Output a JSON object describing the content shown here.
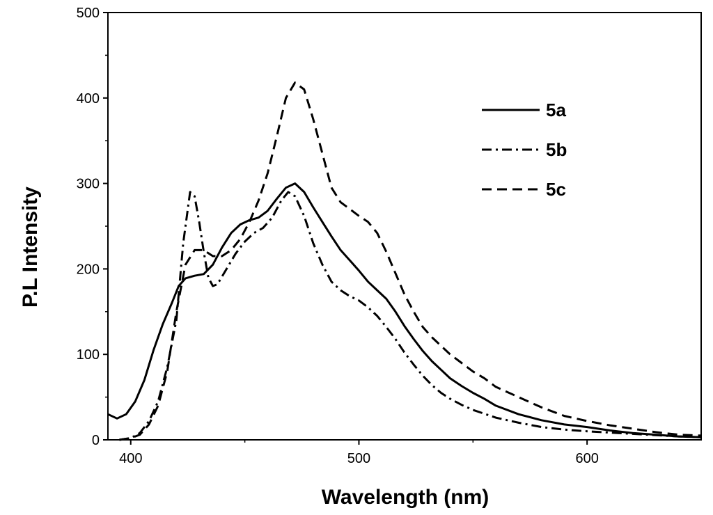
{
  "chart_data": {
    "type": "line",
    "title": "",
    "xlabel": "Wavelength (nm)",
    "ylabel": "P.L Intensity",
    "xlim": [
      390,
      650
    ],
    "ylim": [
      0,
      500
    ],
    "xticks": [
      400,
      500,
      600
    ],
    "yticks": [
      0,
      100,
      200,
      300,
      400,
      500
    ],
    "grid": false,
    "legend_position": "top-right",
    "series": [
      {
        "name": "5a",
        "dash": "solid",
        "color": "#000000",
        "points": [
          [
            390,
            30
          ],
          [
            394,
            25
          ],
          [
            398,
            30
          ],
          [
            402,
            45
          ],
          [
            406,
            70
          ],
          [
            410,
            105
          ],
          [
            414,
            135
          ],
          [
            418,
            160
          ],
          [
            421,
            180
          ],
          [
            424,
            189
          ],
          [
            428,
            192
          ],
          [
            432,
            194
          ],
          [
            436,
            205
          ],
          [
            440,
            225
          ],
          [
            444,
            242
          ],
          [
            448,
            252
          ],
          [
            452,
            257
          ],
          [
            456,
            260
          ],
          [
            460,
            268
          ],
          [
            464,
            282
          ],
          [
            468,
            295
          ],
          [
            472,
            300
          ],
          [
            476,
            290
          ],
          [
            480,
            272
          ],
          [
            484,
            255
          ],
          [
            488,
            238
          ],
          [
            492,
            222
          ],
          [
            496,
            210
          ],
          [
            500,
            198
          ],
          [
            504,
            185
          ],
          [
            508,
            175
          ],
          [
            512,
            165
          ],
          [
            516,
            150
          ],
          [
            520,
            133
          ],
          [
            524,
            118
          ],
          [
            528,
            104
          ],
          [
            532,
            92
          ],
          [
            536,
            82
          ],
          [
            540,
            72
          ],
          [
            545,
            63
          ],
          [
            550,
            55
          ],
          [
            555,
            48
          ],
          [
            560,
            40
          ],
          [
            570,
            30
          ],
          [
            580,
            23
          ],
          [
            590,
            18
          ],
          [
            600,
            15
          ],
          [
            610,
            11
          ],
          [
            620,
            8
          ],
          [
            630,
            6
          ],
          [
            640,
            4
          ],
          [
            650,
            3
          ]
        ]
      },
      {
        "name": "5b",
        "dash": "dashdot",
        "color": "#000000",
        "points": [
          [
            395,
            0
          ],
          [
            400,
            2
          ],
          [
            404,
            8
          ],
          [
            408,
            22
          ],
          [
            412,
            45
          ],
          [
            416,
            85
          ],
          [
            420,
            140
          ],
          [
            423,
            230
          ],
          [
            426,
            290
          ],
          [
            428,
            285
          ],
          [
            430,
            255
          ],
          [
            432,
            220
          ],
          [
            434,
            190
          ],
          [
            436,
            180
          ],
          [
            438,
            182
          ],
          [
            442,
            200
          ],
          [
            446,
            218
          ],
          [
            450,
            232
          ],
          [
            454,
            242
          ],
          [
            458,
            248
          ],
          [
            462,
            260
          ],
          [
            466,
            280
          ],
          [
            469,
            290
          ],
          [
            472,
            285
          ],
          [
            476,
            262
          ],
          [
            480,
            230
          ],
          [
            484,
            205
          ],
          [
            488,
            185
          ],
          [
            492,
            175
          ],
          [
            496,
            168
          ],
          [
            500,
            163
          ],
          [
            504,
            155
          ],
          [
            508,
            145
          ],
          [
            512,
            132
          ],
          [
            516,
            118
          ],
          [
            520,
            102
          ],
          [
            524,
            88
          ],
          [
            528,
            75
          ],
          [
            532,
            64
          ],
          [
            536,
            55
          ],
          [
            540,
            48
          ],
          [
            545,
            41
          ],
          [
            550,
            35
          ],
          [
            560,
            26
          ],
          [
            570,
            20
          ],
          [
            580,
            15
          ],
          [
            590,
            12
          ],
          [
            600,
            10
          ],
          [
            620,
            7
          ],
          [
            640,
            4
          ],
          [
            650,
            3
          ]
        ]
      },
      {
        "name": "5c",
        "dash": "dashed",
        "color": "#000000",
        "points": [
          [
            395,
            0
          ],
          [
            400,
            2
          ],
          [
            404,
            6
          ],
          [
            408,
            18
          ],
          [
            412,
            40
          ],
          [
            416,
            80
          ],
          [
            420,
            150
          ],
          [
            424,
            205
          ],
          [
            428,
            222
          ],
          [
            432,
            222
          ],
          [
            436,
            215
          ],
          [
            440,
            215
          ],
          [
            444,
            222
          ],
          [
            448,
            235
          ],
          [
            452,
            255
          ],
          [
            456,
            280
          ],
          [
            460,
            312
          ],
          [
            464,
            355
          ],
          [
            468,
            400
          ],
          [
            472,
            418
          ],
          [
            476,
            410
          ],
          [
            480,
            375
          ],
          [
            484,
            335
          ],
          [
            488,
            295
          ],
          [
            492,
            278
          ],
          [
            496,
            270
          ],
          [
            500,
            262
          ],
          [
            504,
            255
          ],
          [
            508,
            242
          ],
          [
            512,
            220
          ],
          [
            516,
            195
          ],
          [
            520,
            170
          ],
          [
            524,
            150
          ],
          [
            528,
            132
          ],
          [
            532,
            120
          ],
          [
            536,
            110
          ],
          [
            540,
            100
          ],
          [
            545,
            90
          ],
          [
            550,
            80
          ],
          [
            555,
            72
          ],
          [
            560,
            62
          ],
          [
            570,
            50
          ],
          [
            580,
            38
          ],
          [
            590,
            28
          ],
          [
            600,
            22
          ],
          [
            610,
            17
          ],
          [
            620,
            13
          ],
          [
            630,
            9
          ],
          [
            640,
            6
          ],
          [
            650,
            5
          ]
        ]
      }
    ]
  }
}
